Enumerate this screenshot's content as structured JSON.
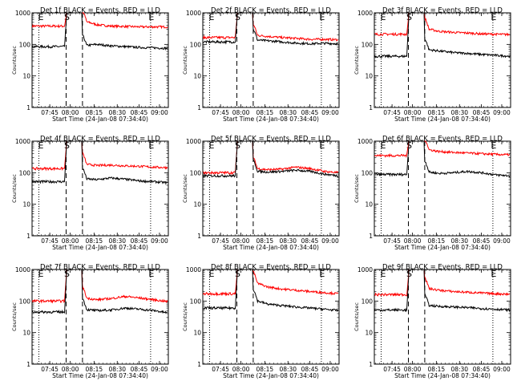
{
  "chart_data": [
    {
      "type": "line",
      "title": "Det 1f BLACK = Events, RED = LLD",
      "xlabel": "Start Time (24-Jan-08 07:34:40)",
      "ylabel": "Counts/sec",
      "yscale": "log",
      "ylim": [
        1,
        1000
      ],
      "x_ticks": [
        "07:45",
        "08:00",
        "08:15",
        "08:30",
        "08:45",
        "09:00"
      ],
      "y_ticks": [
        "1",
        "10",
        "100",
        "1000"
      ],
      "markers": [
        {
          "label": "E",
          "style": "dotted"
        },
        {
          "label": "S",
          "style": "dashed"
        },
        {
          "label": "",
          "style": "dashed"
        },
        {
          "label": "E",
          "style": "dotted"
        }
      ],
      "series": [
        {
          "color": "#ff0000",
          "before": 380,
          "after": [
            560,
            420,
            380,
            370,
            360,
            360,
            360
          ]
        },
        {
          "color": "#000000",
          "before": 85,
          "after": [
            90,
            100,
            90,
            85,
            80,
            78,
            75
          ]
        }
      ]
    },
    {
      "type": "line",
      "title": "Det 2f BLACK = Events, RED = LLD",
      "xlabel": "Start Time (24-Jan-08 07:34:40)",
      "ylabel": "Counts/sec",
      "yscale": "log",
      "ylim": [
        1,
        1000
      ],
      "x_ticks": [
        "07:45",
        "08:00",
        "08:15",
        "08:30",
        "08:45",
        "09:00"
      ],
      "y_ticks": [
        "1",
        "10",
        "100",
        "1000"
      ],
      "markers": [
        {
          "label": "E",
          "style": "dotted"
        },
        {
          "label": "S",
          "style": "dashed"
        },
        {
          "label": "",
          "style": "dashed"
        },
        {
          "label": "E",
          "style": "dotted"
        }
      ],
      "series": [
        {
          "color": "#ff0000",
          "before": 165,
          "after": [
            200,
            180,
            165,
            155,
            145,
            145,
            140
          ]
        },
        {
          "color": "#000000",
          "before": 120,
          "after": [
            140,
            130,
            120,
            110,
            105,
            108,
            105
          ]
        }
      ]
    },
    {
      "type": "line",
      "title": "Det 3f BLACK = Events, RED = LLD",
      "xlabel": "Start Time (24-Jan-08 07:34:40)",
      "ylabel": "Counts/sec",
      "yscale": "log",
      "ylim": [
        1,
        1000
      ],
      "x_ticks": [
        "07:45",
        "08:00",
        "08:15",
        "08:30",
        "08:45",
        "09:00"
      ],
      "y_ticks": [
        "1",
        "10",
        "100",
        "1000"
      ],
      "markers": [
        {
          "label": "E",
          "style": "dotted"
        },
        {
          "label": "S",
          "style": "dashed"
        },
        {
          "label": "",
          "style": "dashed"
        },
        {
          "label": "E",
          "style": "dotted"
        }
      ],
      "series": [
        {
          "color": "#ff0000",
          "before": 210,
          "after": [
            320,
            260,
            240,
            230,
            215,
            210,
            205
          ]
        },
        {
          "color": "#000000",
          "before": 42,
          "after": [
            70,
            62,
            55,
            52,
            48,
            45,
            42
          ]
        }
      ]
    },
    {
      "type": "line",
      "title": "Det 4f BLACK = Events, RED = LLD",
      "xlabel": "Start Time (24-Jan-08 07:34:40)",
      "ylabel": "Counts/sec",
      "yscale": "log",
      "ylim": [
        1,
        1000
      ],
      "x_ticks": [
        "07:45",
        "08:00",
        "08:15",
        "08:30",
        "08:45",
        "09:00"
      ],
      "y_ticks": [
        "1",
        "10",
        "100",
        "1000"
      ],
      "markers": [
        {
          "label": "E",
          "style": "dotted"
        },
        {
          "label": "S",
          "style": "dashed"
        },
        {
          "label": "",
          "style": "dashed"
        },
        {
          "label": "E",
          "style": "dotted"
        }
      ],
      "series": [
        {
          "color": "#ff0000",
          "before": 135,
          "after": [
            190,
            170,
            175,
            165,
            160,
            150,
            145
          ]
        },
        {
          "color": "#000000",
          "before": 52,
          "after": [
            65,
            60,
            68,
            62,
            55,
            52,
            48
          ]
        }
      ]
    },
    {
      "type": "line",
      "title": "Det 5f BLACK = Events, RED = LLD",
      "xlabel": "Start Time (24-Jan-08 07:34:40)",
      "ylabel": "Counts/sec",
      "yscale": "log",
      "ylim": [
        1,
        1000
      ],
      "x_ticks": [
        "07:45",
        "08:00",
        "08:15",
        "08:30",
        "08:45",
        "09:00"
      ],
      "y_ticks": [
        "1",
        "10",
        "100",
        "1000"
      ],
      "markers": [
        {
          "label": "E",
          "style": "dotted"
        },
        {
          "label": "S",
          "style": "dashed"
        },
        {
          "label": "",
          "style": "dashed"
        },
        {
          "label": "E",
          "style": "dotted"
        }
      ],
      "series": [
        {
          "color": "#ff0000",
          "before": 100,
          "after": [
            140,
            125,
            130,
            150,
            135,
            110,
            100
          ]
        },
        {
          "color": "#000000",
          "before": 80,
          "after": [
            115,
            105,
            110,
            120,
            110,
            90,
            80
          ]
        }
      ]
    },
    {
      "type": "line",
      "title": "Det 6f BLACK = Events, RED = LLD",
      "xlabel": "Start Time (24-Jan-08 07:34:40)",
      "ylabel": "Counts/sec",
      "yscale": "log",
      "ylim": [
        1,
        1000
      ],
      "x_ticks": [
        "07:45",
        "08:00",
        "08:15",
        "08:30",
        "08:45",
        "09:00"
      ],
      "y_ticks": [
        "1",
        "10",
        "100",
        "1000"
      ],
      "markers": [
        {
          "label": "E",
          "style": "dotted"
        },
        {
          "label": "S",
          "style": "dashed"
        },
        {
          "label": "",
          "style": "dashed"
        },
        {
          "label": "E",
          "style": "dotted"
        }
      ],
      "series": [
        {
          "color": "#ff0000",
          "before": 350,
          "after": [
            560,
            470,
            440,
            420,
            400,
            380,
            370
          ]
        },
        {
          "color": "#000000",
          "before": 88,
          "after": [
            110,
            95,
            100,
            110,
            100,
            85,
            80
          ]
        }
      ]
    },
    {
      "type": "line",
      "title": "Det 7f BLACK = Events, RED = LLD",
      "xlabel": "Start Time (24-Jan-08 07:34:40)",
      "ylabel": "Counts/sec",
      "yscale": "log",
      "ylim": [
        1,
        1000
      ],
      "x_ticks": [
        "07:45",
        "08:00",
        "08:15",
        "08:30",
        "08:45",
        "09:00"
      ],
      "y_ticks": [
        "1",
        "10",
        "100",
        "1000"
      ],
      "markers": [
        {
          "label": "E",
          "style": "dotted"
        },
        {
          "label": "S",
          "style": "dashed"
        },
        {
          "label": "",
          "style": "dashed"
        },
        {
          "label": "E",
          "style": "dotted"
        }
      ],
      "series": [
        {
          "color": "#ff0000",
          "before": 100,
          "after": [
            130,
            110,
            120,
            140,
            125,
            110,
            95
          ]
        },
        {
          "color": "#000000",
          "before": 45,
          "after": [
            55,
            50,
            52,
            60,
            55,
            50,
            42
          ]
        }
      ]
    },
    {
      "type": "line",
      "title": "Det 8f BLACK = Events, RED = LLD",
      "xlabel": "Start Time (24-Jan-08 07:34:40)",
      "ylabel": "Counts/sec",
      "yscale": "log",
      "ylim": [
        1,
        1000
      ],
      "x_ticks": [
        "07:45",
        "08:00",
        "08:15",
        "08:30",
        "08:45",
        "09:00"
      ],
      "y_ticks": [
        "1",
        "10",
        "100",
        "1000"
      ],
      "markers": [
        {
          "label": "E",
          "style": "dotted"
        },
        {
          "label": "S",
          "style": "dashed"
        },
        {
          "label": "",
          "style": "dashed"
        },
        {
          "label": "E",
          "style": "dotted"
        }
      ],
      "series": [
        {
          "color": "#ff0000",
          "before": 170,
          "after": [
            400,
            280,
            240,
            220,
            200,
            185,
            170
          ]
        },
        {
          "color": "#000000",
          "before": 60,
          "after": [
            110,
            80,
            72,
            65,
            60,
            55,
            50
          ]
        }
      ]
    },
    {
      "type": "line",
      "title": "Det 9f BLACK = Events, RED = LLD",
      "xlabel": "Start Time (24-Jan-08 07:34:40)",
      "ylabel": "Counts/sec",
      "yscale": "log",
      "ylim": [
        1,
        1000
      ],
      "x_ticks": [
        "07:45",
        "08:00",
        "08:15",
        "08:30",
        "08:45",
        "09:00"
      ],
      "y_ticks": [
        "1",
        "10",
        "100",
        "1000"
      ],
      "markers": [
        {
          "label": "E",
          "style": "dotted"
        },
        {
          "label": "S",
          "style": "dashed"
        },
        {
          "label": "",
          "style": "dashed"
        },
        {
          "label": "E",
          "style": "dotted"
        }
      ],
      "series": [
        {
          "color": "#ff0000",
          "before": 160,
          "after": [
            260,
            220,
            200,
            190,
            180,
            170,
            165
          ]
        },
        {
          "color": "#000000",
          "before": 52,
          "after": [
            75,
            68,
            65,
            62,
            58,
            55,
            52
          ]
        }
      ]
    }
  ]
}
